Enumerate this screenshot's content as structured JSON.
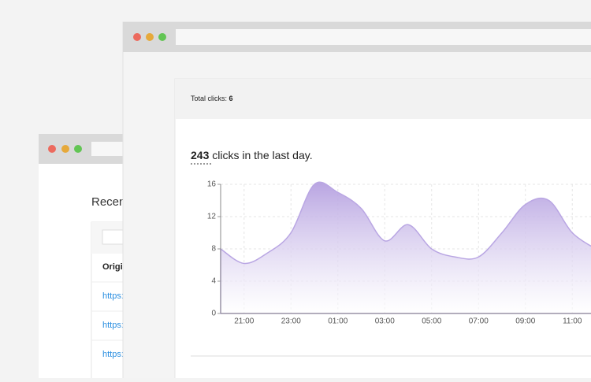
{
  "back_window": {
    "heading": "Recen",
    "column_header": "Origi",
    "links": [
      "https:",
      "https:",
      "https:"
    ]
  },
  "header": {
    "total_label": "Total clicks:",
    "total_value": "6"
  },
  "summary": {
    "count": "243",
    "text": "clicks in the last day."
  },
  "chart_data": {
    "type": "area",
    "categories": [
      null,
      "21:00",
      null,
      "23:00",
      null,
      "01:00",
      null,
      "03:00",
      null,
      "05:00",
      null,
      "07:00",
      null,
      "09:00",
      null,
      "11:00",
      null
    ],
    "values": [
      8,
      6.2,
      7.5,
      10,
      16,
      15,
      13,
      9,
      11,
      8,
      7,
      7,
      10,
      13.5,
      14,
      10,
      8
    ],
    "color": "#b9a6e3",
    "ylim": [
      0,
      16
    ],
    "yticks": [
      0,
      4,
      8,
      12,
      16
    ],
    "grid": true
  }
}
